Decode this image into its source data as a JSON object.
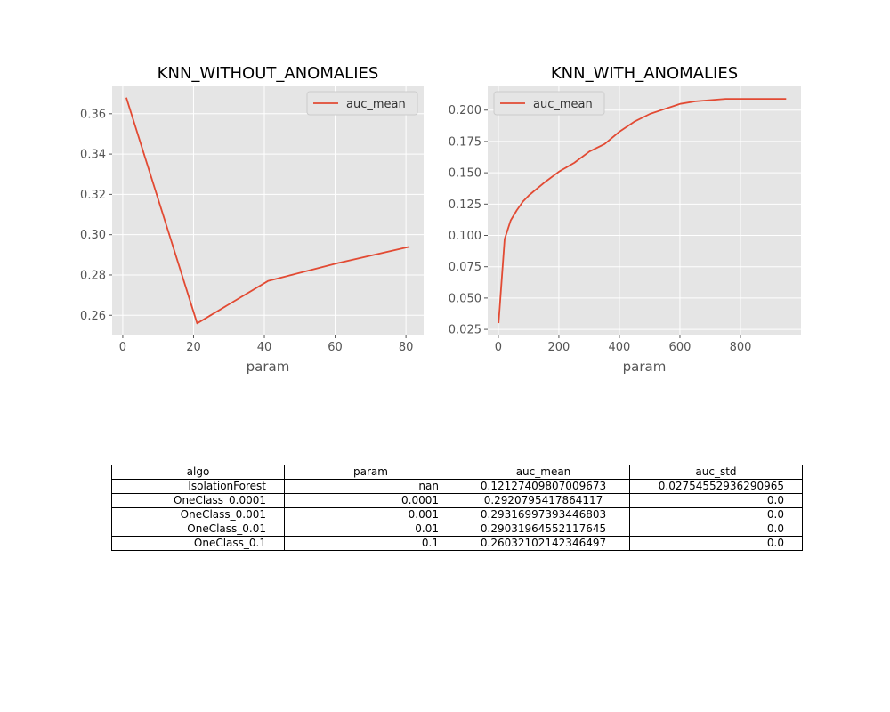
{
  "chart_data": [
    {
      "type": "line",
      "title": "KNN_WITHOUT_ANOMALIES",
      "xlabel": "param",
      "ylabel": "",
      "xlim": [
        -3.0,
        85.0
      ],
      "ylim": [
        0.2504,
        0.3736
      ],
      "xticks": [
        0,
        20,
        40,
        60,
        80
      ],
      "yticks": [
        0.26,
        0.28,
        0.3,
        0.32,
        0.34,
        0.36
      ],
      "ytick_labels": [
        "0.26",
        "0.28",
        "0.30",
        "0.32",
        "0.34",
        "0.36"
      ],
      "grid": true,
      "legend_placement": "upper right",
      "series": [
        {
          "name": "auc_mean",
          "color": "#e24a33",
          "x": [
            1,
            21,
            41,
            61,
            81
          ],
          "y": [
            0.368,
            0.256,
            0.277,
            0.286,
            0.294
          ]
        }
      ]
    },
    {
      "type": "line",
      "title": "KNN_WITH_ANOMALIES",
      "xlabel": "param",
      "ylabel": "",
      "xlim": [
        -35.0,
        1000.0
      ],
      "ylim": [
        0.0208,
        0.219
      ],
      "xticks": [
        0,
        200,
        400,
        600,
        800
      ],
      "yticks": [
        0.025,
        0.05,
        0.075,
        0.1,
        0.125,
        0.15,
        0.175,
        0.2
      ],
      "ytick_labels": [
        "0.025",
        "0.050",
        "0.075",
        "0.100",
        "0.125",
        "0.150",
        "0.175",
        "0.200"
      ],
      "grid": true,
      "legend_placement": "upper left",
      "series": [
        {
          "name": "auc_mean",
          "color": "#e24a33",
          "x": [
            1,
            21,
            41,
            61,
            81,
            101,
            121,
            151,
            201,
            251,
            301,
            351,
            401,
            451,
            501,
            551,
            601,
            651,
            701,
            751,
            801,
            851,
            901,
            951
          ],
          "y": [
            0.03,
            0.097,
            0.112,
            0.12,
            0.127,
            0.132,
            0.136,
            0.142,
            0.151,
            0.158,
            0.167,
            0.173,
            0.183,
            0.191,
            0.197,
            0.201,
            0.205,
            0.207,
            0.208,
            0.209,
            0.209,
            0.209,
            0.209,
            0.209
          ]
        }
      ]
    }
  ],
  "table": {
    "headers": [
      "algo",
      "param",
      "auc_mean",
      "auc_std"
    ],
    "rows": [
      [
        "IsolationForest",
        "nan",
        "0.12127409807009673",
        "0.02754552936290965"
      ],
      [
        "OneClass_0.0001",
        "0.0001",
        "0.2920795417864117",
        "0.0"
      ],
      [
        "OneClass_0.001",
        "0.001",
        "0.29316997393446803",
        "0.0"
      ],
      [
        "OneClass_0.01",
        "0.01",
        "0.29031964552117645",
        "0.0"
      ],
      [
        "OneClass_0.1",
        "0.1",
        "0.26032102142346497",
        "0.0"
      ]
    ]
  },
  "colors": {
    "axes_bg": "#e5e5e5",
    "grid": "#ffffff",
    "line": "#e24a33",
    "tick_text": "#555555"
  }
}
